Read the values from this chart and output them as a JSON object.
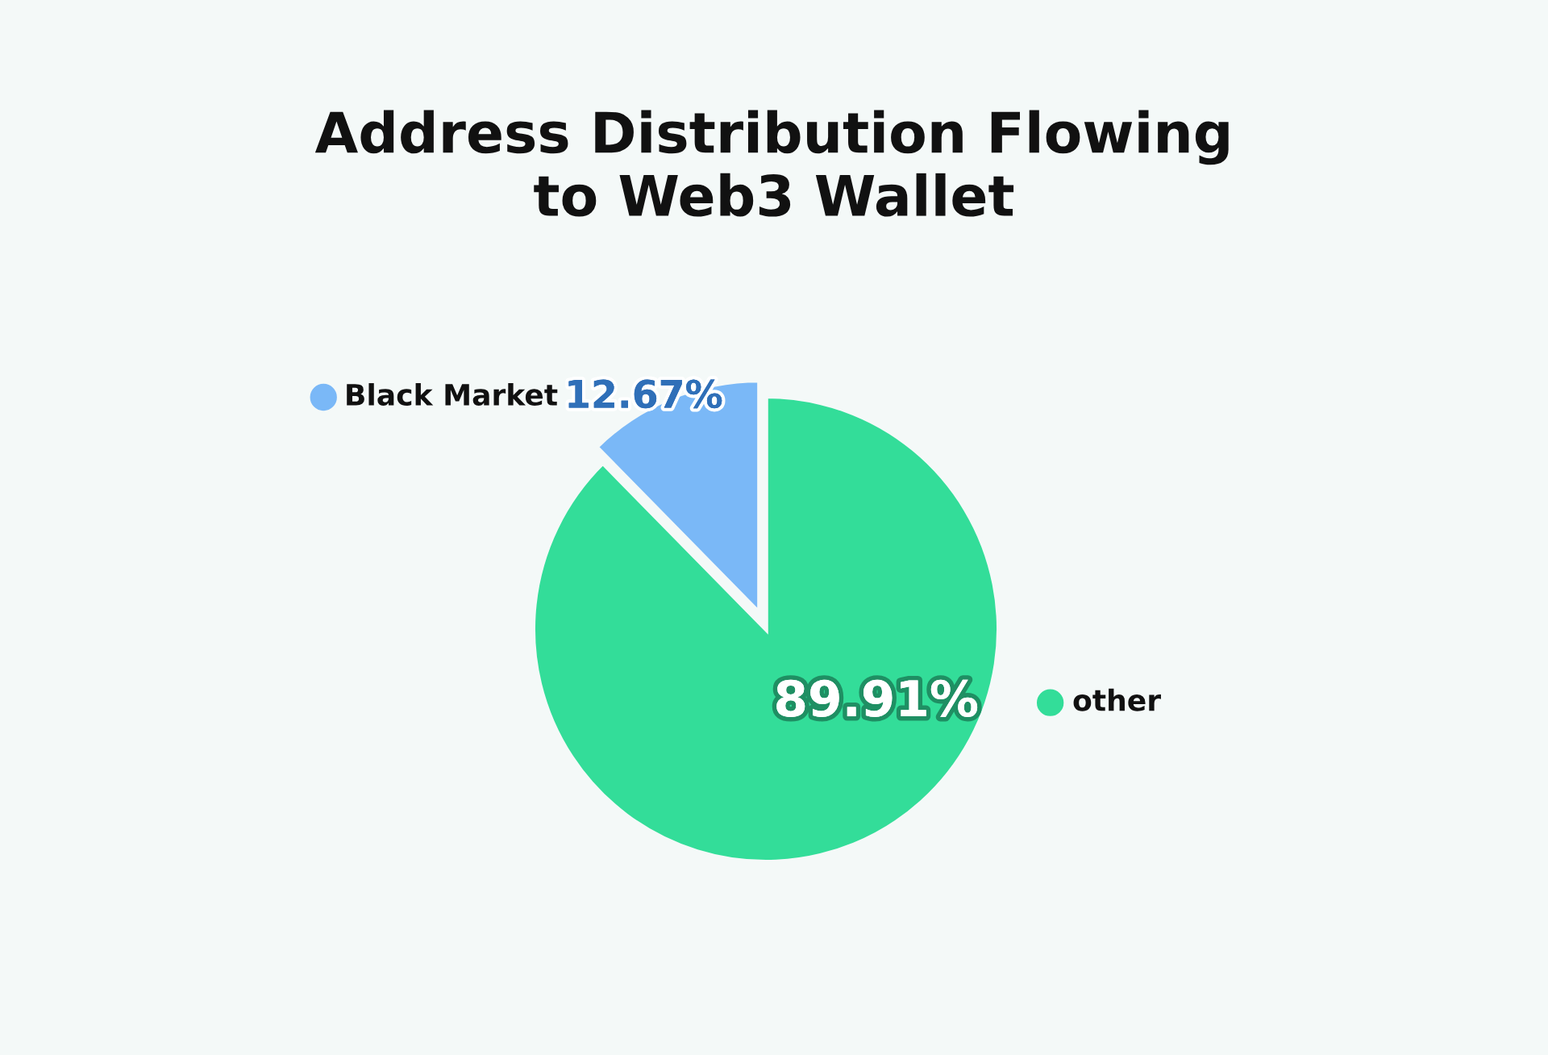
{
  "chart_data": {
    "type": "pie",
    "title": "Address Distribution Flowing\nto Web3 Wallet",
    "categories": [
      "Black Market",
      "other"
    ],
    "values": [
      12.67,
      89.91
    ],
    "colors": [
      "#7ab8f7",
      "#33dd99"
    ],
    "value_labels": [
      "12.67%",
      "89.91%"
    ],
    "legend": "top left"
  }
}
